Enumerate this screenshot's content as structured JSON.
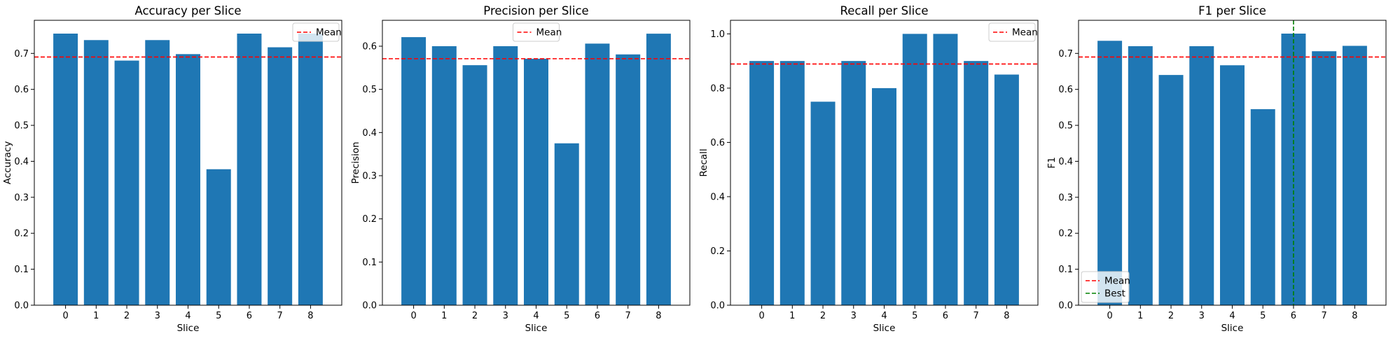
{
  "chart_data": [
    {
      "type": "bar",
      "title": "Accuracy per Slice",
      "xlabel": "Slice",
      "ylabel": "Accuracy",
      "categories": [
        "0",
        "1",
        "2",
        "3",
        "4",
        "5",
        "6",
        "7",
        "8"
      ],
      "values": [
        0.755,
        0.737,
        0.68,
        0.737,
        0.698,
        0.378,
        0.755,
        0.717,
        0.755
      ],
      "ylim": [
        0,
        0.792
      ],
      "yticks": [
        0.0,
        0.1,
        0.2,
        0.3,
        0.4,
        0.5,
        0.6,
        0.7
      ],
      "ytick_labels": [
        "0.0",
        "0.1",
        "0.2",
        "0.3",
        "0.4",
        "0.5",
        "0.6",
        "0.7"
      ],
      "bar_color": "#1f77b4",
      "hlines": [
        {
          "name": "Mean",
          "value": 0.69,
          "color": "#ff0000",
          "style": "dashed"
        }
      ],
      "vlines": [],
      "legend": {
        "placement": "upper right",
        "entries": [
          "Mean"
        ]
      },
      "grid": false
    },
    {
      "type": "bar",
      "title": "Precision per Slice",
      "xlabel": "Slice",
      "ylabel": "Precision",
      "categories": [
        "0",
        "1",
        "2",
        "3",
        "4",
        "5",
        "6",
        "7",
        "8"
      ],
      "values": [
        0.621,
        0.6,
        0.556,
        0.6,
        0.571,
        0.375,
        0.606,
        0.581,
        0.629
      ],
      "ylim": [
        0,
        0.66
      ],
      "yticks": [
        0.0,
        0.1,
        0.2,
        0.3,
        0.4,
        0.5,
        0.6
      ],
      "ytick_labels": [
        "0.0",
        "0.1",
        "0.2",
        "0.3",
        "0.4",
        "0.5",
        "0.6"
      ],
      "bar_color": "#1f77b4",
      "hlines": [
        {
          "name": "Mean",
          "value": 0.571,
          "color": "#ff0000",
          "style": "dashed"
        }
      ],
      "vlines": [],
      "legend": {
        "placement": "upper center",
        "entries": [
          "Mean"
        ]
      },
      "grid": false
    },
    {
      "type": "bar",
      "title": "Recall per Slice",
      "xlabel": "Slice",
      "ylabel": "Recall",
      "categories": [
        "0",
        "1",
        "2",
        "3",
        "4",
        "5",
        "6",
        "7",
        "8"
      ],
      "values": [
        0.9,
        0.9,
        0.75,
        0.9,
        0.8,
        1.0,
        1.0,
        0.9,
        0.85
      ],
      "ylim": [
        0,
        1.05
      ],
      "yticks": [
        0.0,
        0.2,
        0.4,
        0.6,
        0.8,
        1.0
      ],
      "ytick_labels": [
        "0.0",
        "0.2",
        "0.4",
        "0.6",
        "0.8",
        "1.0"
      ],
      "bar_color": "#1f77b4",
      "hlines": [
        {
          "name": "Mean",
          "value": 0.889,
          "color": "#ff0000",
          "style": "dashed"
        }
      ],
      "vlines": [],
      "legend": {
        "placement": "upper right",
        "entries": [
          "Mean"
        ]
      },
      "grid": false
    },
    {
      "type": "bar",
      "title": "F1 per Slice",
      "xlabel": "Slice",
      "ylabel": "F1",
      "categories": [
        "0",
        "1",
        "2",
        "3",
        "4",
        "5",
        "6",
        "7",
        "8"
      ],
      "values": [
        0.735,
        0.72,
        0.64,
        0.72,
        0.667,
        0.545,
        0.755,
        0.706,
        0.721
      ],
      "ylim": [
        0,
        0.792
      ],
      "yticks": [
        0.0,
        0.1,
        0.2,
        0.3,
        0.4,
        0.5,
        0.6,
        0.7
      ],
      "ytick_labels": [
        "0.0",
        "0.1",
        "0.2",
        "0.3",
        "0.4",
        "0.5",
        "0.6",
        "0.7"
      ],
      "bar_color": "#1f77b4",
      "hlines": [
        {
          "name": "Mean",
          "value": 0.69,
          "color": "#ff0000",
          "style": "dashed"
        }
      ],
      "vlines": [
        {
          "name": "Best",
          "value": 6,
          "color": "#008000",
          "style": "dashed"
        }
      ],
      "legend": {
        "placement": "lower left",
        "entries": [
          "Mean",
          "Best"
        ]
      },
      "grid": false
    }
  ]
}
